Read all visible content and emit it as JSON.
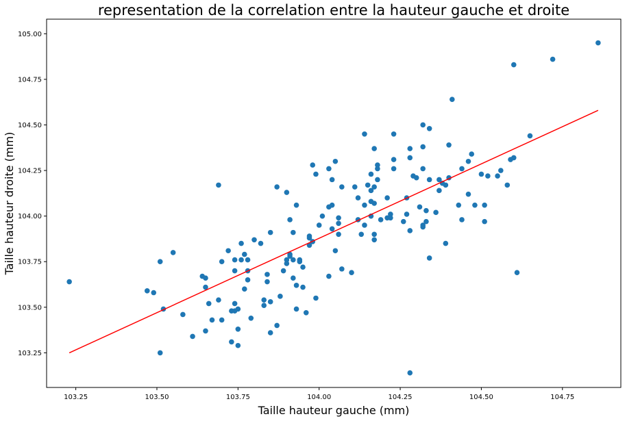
{
  "chart_data": {
    "type": "scatter",
    "title": "representation de la correlation entre la hauteur gauche et droite",
    "xlabel": "Taille hauteur gauche (mm)",
    "ylabel": "Taille hauteur droite (mm)",
    "xlim": [
      103.16,
      104.93
    ],
    "ylim": [
      103.06,
      105.08
    ],
    "x_ticks": [
      "103.25",
      "103.50",
      "103.75",
      "104.00",
      "104.25",
      "104.50",
      "104.75"
    ],
    "y_ticks": [
      "103.25",
      "103.50",
      "103.75",
      "104.00",
      "104.25",
      "104.50",
      "104.75",
      "105.00"
    ],
    "grid": false,
    "colors": {
      "points": "#1f77b4",
      "fit_line": "#ff0000"
    },
    "fit_line": {
      "x": [
        103.23,
        104.86
      ],
      "y": [
        103.25,
        104.58
      ]
    },
    "points": [
      [
        103.23,
        103.64
      ],
      [
        103.47,
        103.59
      ],
      [
        103.49,
        103.58
      ],
      [
        103.51,
        103.75
      ],
      [
        103.51,
        103.25
      ],
      [
        103.52,
        103.49
      ],
      [
        103.55,
        103.8
      ],
      [
        103.58,
        103.46
      ],
      [
        103.61,
        103.34
      ],
      [
        103.64,
        103.67
      ],
      [
        103.65,
        103.66
      ],
      [
        103.65,
        103.61
      ],
      [
        103.65,
        103.37
      ],
      [
        103.66,
        103.52
      ],
      [
        103.67,
        103.43
      ],
      [
        103.69,
        104.17
      ],
      [
        103.69,
        103.54
      ],
      [
        103.7,
        103.75
      ],
      [
        103.7,
        103.43
      ],
      [
        103.72,
        103.81
      ],
      [
        103.73,
        103.48
      ],
      [
        103.73,
        103.31
      ],
      [
        103.74,
        103.76
      ],
      [
        103.74,
        103.7
      ],
      [
        103.74,
        103.52
      ],
      [
        103.74,
        103.48
      ],
      [
        103.75,
        103.49
      ],
      [
        103.75,
        103.38
      ],
      [
        103.75,
        103.29
      ],
      [
        103.76,
        103.85
      ],
      [
        103.76,
        103.76
      ],
      [
        103.77,
        103.79
      ],
      [
        103.77,
        103.6
      ],
      [
        103.78,
        103.76
      ],
      [
        103.78,
        103.7
      ],
      [
        103.78,
        103.65
      ],
      [
        103.79,
        103.44
      ],
      [
        103.8,
        103.87
      ],
      [
        103.82,
        103.85
      ],
      [
        103.83,
        103.54
      ],
      [
        103.83,
        103.51
      ],
      [
        103.84,
        103.68
      ],
      [
        103.84,
        103.64
      ],
      [
        103.85,
        103.91
      ],
      [
        103.85,
        103.53
      ],
      [
        103.85,
        103.36
      ],
      [
        103.87,
        104.16
      ],
      [
        103.87,
        103.4
      ],
      [
        103.88,
        103.56
      ],
      [
        103.89,
        103.7
      ],
      [
        103.9,
        104.13
      ],
      [
        103.9,
        103.76
      ],
      [
        103.9,
        103.74
      ],
      [
        103.91,
        103.98
      ],
      [
        103.91,
        103.79
      ],
      [
        103.91,
        103.78
      ],
      [
        103.92,
        103.91
      ],
      [
        103.92,
        103.76
      ],
      [
        103.92,
        103.66
      ],
      [
        103.93,
        104.06
      ],
      [
        103.93,
        103.62
      ],
      [
        103.93,
        103.49
      ],
      [
        103.94,
        103.76
      ],
      [
        103.94,
        103.75
      ],
      [
        103.95,
        103.72
      ],
      [
        103.95,
        103.61
      ],
      [
        103.96,
        103.47
      ],
      [
        103.97,
        103.89
      ],
      [
        103.97,
        103.88
      ],
      [
        103.97,
        103.84
      ],
      [
        103.98,
        104.28
      ],
      [
        103.98,
        103.86
      ],
      [
        103.99,
        104.23
      ],
      [
        103.99,
        103.55
      ],
      [
        104.0,
        103.95
      ],
      [
        104.01,
        104.0
      ],
      [
        104.03,
        104.26
      ],
      [
        104.03,
        104.05
      ],
      [
        104.03,
        103.67
      ],
      [
        104.04,
        104.2
      ],
      [
        104.04,
        104.06
      ],
      [
        104.04,
        103.93
      ],
      [
        104.05,
        104.3
      ],
      [
        104.05,
        103.81
      ],
      [
        104.06,
        103.99
      ],
      [
        104.06,
        103.96
      ],
      [
        104.06,
        103.9
      ],
      [
        104.07,
        104.16
      ],
      [
        104.07,
        103.71
      ],
      [
        104.1,
        103.69
      ],
      [
        104.11,
        104.16
      ],
      [
        104.12,
        104.1
      ],
      [
        104.12,
        103.98
      ],
      [
        104.13,
        103.9
      ],
      [
        104.14,
        104.45
      ],
      [
        104.14,
        104.06
      ],
      [
        104.14,
        103.95
      ],
      [
        104.15,
        104.17
      ],
      [
        104.16,
        104.23
      ],
      [
        104.16,
        104.14
      ],
      [
        104.16,
        104.08
      ],
      [
        104.16,
        104.0
      ],
      [
        104.17,
        104.37
      ],
      [
        104.17,
        104.16
      ],
      [
        104.17,
        104.07
      ],
      [
        104.17,
        103.9
      ],
      [
        104.17,
        103.87
      ],
      [
        104.18,
        104.28
      ],
      [
        104.18,
        104.26
      ],
      [
        104.18,
        104.2
      ],
      [
        104.19,
        103.98
      ],
      [
        104.21,
        104.1
      ],
      [
        104.21,
        103.99
      ],
      [
        104.22,
        104.01
      ],
      [
        104.22,
        103.99
      ],
      [
        104.23,
        104.45
      ],
      [
        104.23,
        104.31
      ],
      [
        104.23,
        104.26
      ],
      [
        104.26,
        103.97
      ],
      [
        104.27,
        104.1
      ],
      [
        104.27,
        104.01
      ],
      [
        104.28,
        104.37
      ],
      [
        104.28,
        104.32
      ],
      [
        104.28,
        103.92
      ],
      [
        104.29,
        104.22
      ],
      [
        104.3,
        104.21
      ],
      [
        104.31,
        104.05
      ],
      [
        104.32,
        104.5
      ],
      [
        104.32,
        104.38
      ],
      [
        104.32,
        104.26
      ],
      [
        104.32,
        103.95
      ],
      [
        104.32,
        103.94
      ],
      [
        104.33,
        104.03
      ],
      [
        104.33,
        103.97
      ],
      [
        104.34,
        104.48
      ],
      [
        104.34,
        104.2
      ],
      [
        104.34,
        103.77
      ],
      [
        104.36,
        104.02
      ],
      [
        104.37,
        104.2
      ],
      [
        104.37,
        104.14
      ],
      [
        104.38,
        104.18
      ],
      [
        104.39,
        104.17
      ],
      [
        104.39,
        103.85
      ],
      [
        104.4,
        104.39
      ],
      [
        104.4,
        104.21
      ],
      [
        104.41,
        104.64
      ],
      [
        104.43,
        104.06
      ],
      [
        104.44,
        104.26
      ],
      [
        104.44,
        103.98
      ],
      [
        104.46,
        104.3
      ],
      [
        104.46,
        104.12
      ],
      [
        104.47,
        104.34
      ],
      [
        104.48,
        104.06
      ],
      [
        104.5,
        104.23
      ],
      [
        104.51,
        104.06
      ],
      [
        104.51,
        103.97
      ],
      [
        104.52,
        104.22
      ],
      [
        104.55,
        104.22
      ],
      [
        104.56,
        104.25
      ],
      [
        104.58,
        104.17
      ],
      [
        104.59,
        104.31
      ],
      [
        104.6,
        104.83
      ],
      [
        104.6,
        104.32
      ],
      [
        104.61,
        103.69
      ],
      [
        104.65,
        104.44
      ],
      [
        104.72,
        104.86
      ],
      [
        104.86,
        104.95
      ],
      [
        104.28,
        103.14
      ]
    ]
  }
}
